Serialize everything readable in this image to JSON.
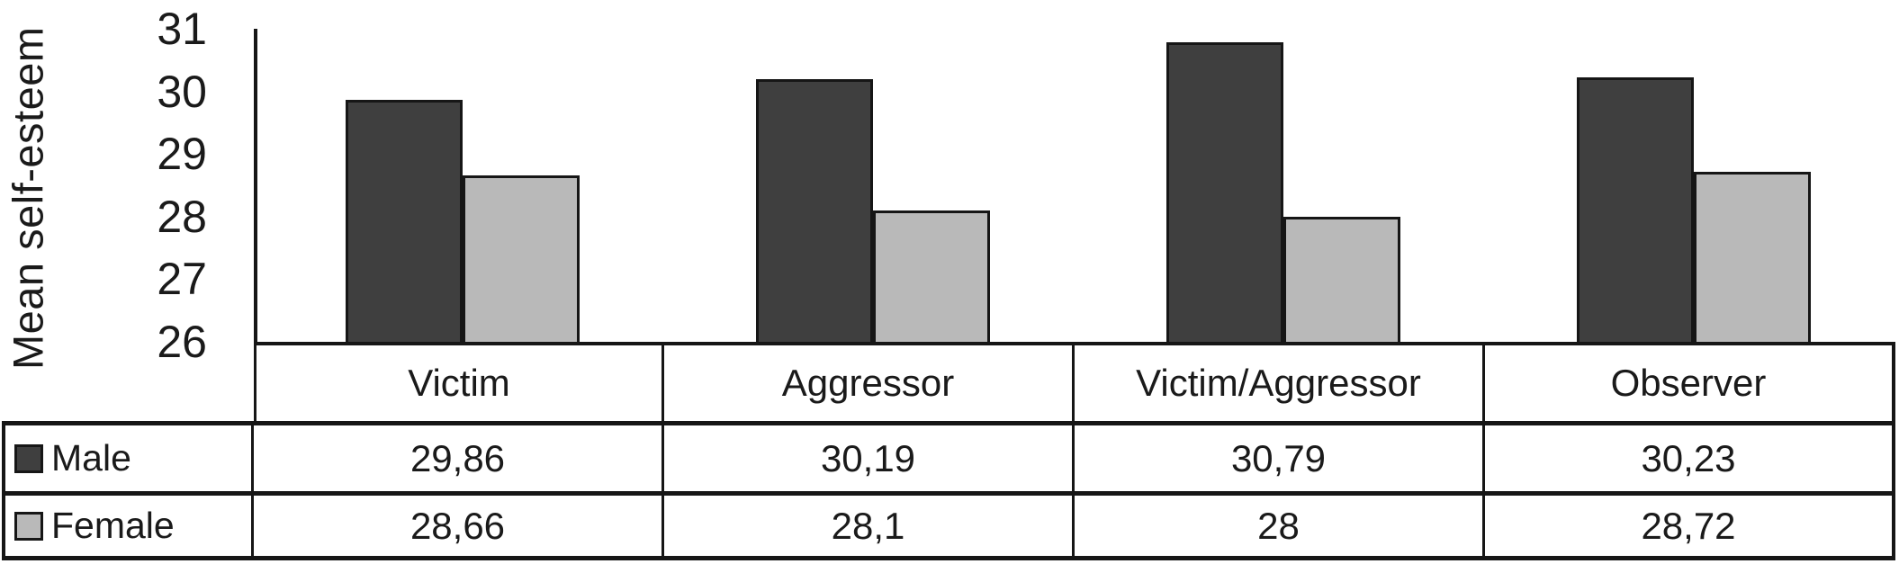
{
  "chart_data": {
    "type": "bar",
    "title": "",
    "ylabel": "Mean self-esteem",
    "xlabel": "",
    "categories": [
      "Victim",
      "Aggressor",
      "Victim/Aggressor",
      "Observer"
    ],
    "series": [
      {
        "name": "Male",
        "color": "#3f3f3f",
        "values": [
          29.86,
          30.19,
          30.79,
          30.23
        ],
        "display_values": [
          "29,86",
          "30,19",
          "30,79",
          "30,23"
        ]
      },
      {
        "name": "Female",
        "color": "#b9b9b9",
        "values": [
          28.66,
          28.1,
          28.0,
          28.72
        ],
        "display_values": [
          "28,66",
          "28,1",
          "28",
          "28,72"
        ]
      }
    ],
    "ylim": [
      26,
      31
    ],
    "ytick_step": 1,
    "ytick_labels": [
      "31",
      "30",
      "29",
      "28",
      "27",
      "26"
    ],
    "grid": false,
    "decimal_separator": ",",
    "legend_position": "data-table-left-column",
    "bar_outline_color": "#161616"
  }
}
